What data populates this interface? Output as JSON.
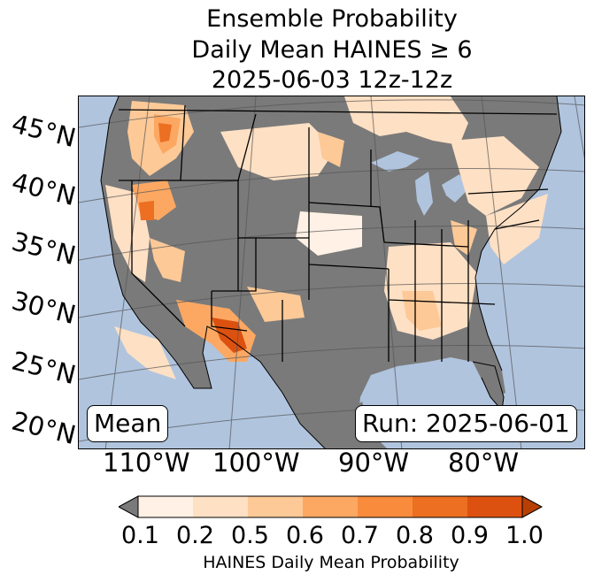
{
  "title": {
    "line1": "Ensemble Probability",
    "line2": "Daily Mean HAINES ≥ 6",
    "line3": "2025-06-03 12z-12z"
  },
  "map": {
    "colors": {
      "ocean": "#b0c4de",
      "no_data_land": "#7a7a7a",
      "border": "#000000"
    },
    "lat_labels": [
      "45°N",
      "40°N",
      "35°N",
      "30°N",
      "25°N",
      "20°N"
    ],
    "lon_labels": [
      "110°W",
      "100°W",
      "90°W",
      "80°W"
    ],
    "mean_label": "Mean",
    "run_label": "Run: 2025-06-01"
  },
  "colorbar": {
    "ticks": [
      "0.1",
      "0.2",
      "0.5",
      "0.6",
      "0.7",
      "0.8",
      "0.9",
      "1.0"
    ],
    "colors": [
      "#fff1e5",
      "#fee0c4",
      "#fdc997",
      "#fca863",
      "#f98b3d",
      "#ec6f22",
      "#dc5110",
      "#b83f04"
    ],
    "under_color": "#7a7a7a",
    "title": "HAINES Daily Mean Probability"
  }
}
